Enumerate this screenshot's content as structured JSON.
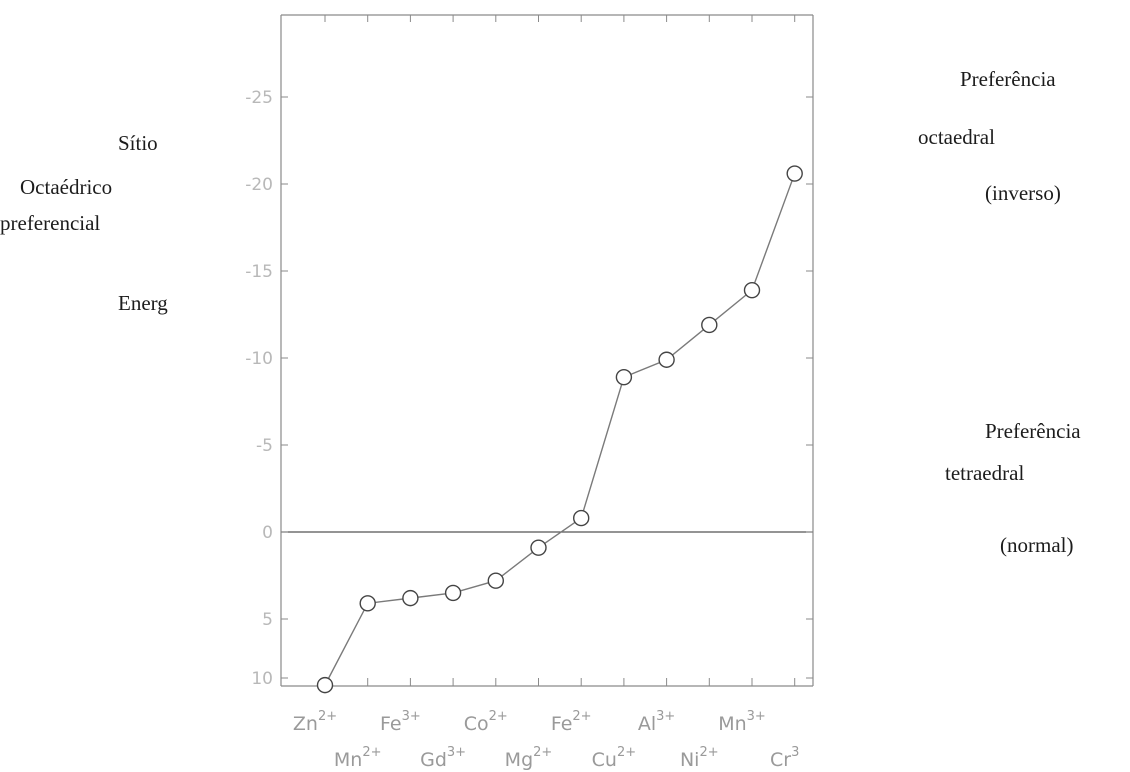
{
  "labels": {
    "left": [
      "Sítio",
      "Octaédrico",
      "preferencial",
      "Energ"
    ],
    "right_top": [
      "Preferência",
      "octaedral",
      "(inverso)"
    ],
    "right_bottom": [
      "Preferência",
      "tetraedral",
      "(normal)"
    ]
  },
  "chart_data": {
    "type": "line",
    "title": "",
    "xlabel": "",
    "ylabel": "",
    "y_tick_labels": [
      "-25",
      "-20",
      "-15",
      "-10",
      "-5",
      "0",
      "5",
      "10"
    ],
    "ylim": [
      10,
      -28
    ],
    "grid": false,
    "reference_line_y": 0,
    "categories": [
      {
        "ion": "Zn",
        "charge": "2+"
      },
      {
        "ion": "Mn",
        "charge": "2+"
      },
      {
        "ion": "Fe",
        "charge": "3+"
      },
      {
        "ion": "Gd",
        "charge": "3+"
      },
      {
        "ion": "Co",
        "charge": "2+"
      },
      {
        "ion": "Mg",
        "charge": "2+"
      },
      {
        "ion": "Fe",
        "charge": "2+"
      },
      {
        "ion": "Cu",
        "charge": "2+"
      },
      {
        "ion": "Al",
        "charge": "3+"
      },
      {
        "ion": "Ni",
        "charge": "2+"
      },
      {
        "ion": "Mn",
        "charge": "3+"
      },
      {
        "ion": "Cr",
        "charge": "3"
      }
    ],
    "series": [
      {
        "values": [
          8.8,
          4.1,
          3.8,
          3.5,
          2.8,
          0.9,
          -0.8,
          -8.9,
          -9.9,
          -11.9,
          -13.9,
          -20.6
        ]
      }
    ],
    "colors": {
      "axis": "#8a8a8a",
      "line": "#7a7a7a",
      "marker": "#444444"
    }
  }
}
